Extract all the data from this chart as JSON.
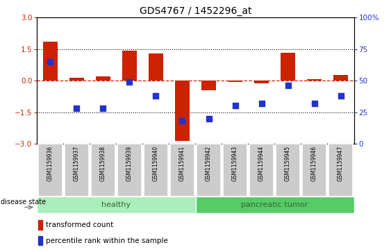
{
  "title": "GDS4767 / 1452296_at",
  "samples": [
    "GSM1159936",
    "GSM1159937",
    "GSM1159938",
    "GSM1159939",
    "GSM1159940",
    "GSM1159941",
    "GSM1159942",
    "GSM1159943",
    "GSM1159944",
    "GSM1159945",
    "GSM1159946",
    "GSM1159947"
  ],
  "transformed_count": [
    1.85,
    0.15,
    0.2,
    1.42,
    1.3,
    -2.88,
    -0.45,
    -0.05,
    -0.12,
    1.32,
    0.08,
    0.28
  ],
  "percentile_rank": [
    65,
    28,
    28,
    49,
    38,
    18,
    20,
    30,
    32,
    46,
    32,
    38
  ],
  "ylim": [
    -3,
    3
  ],
  "yticks_left": [
    -3,
    -1.5,
    0,
    1.5,
    3
  ],
  "yticks_right": [
    0,
    25,
    50,
    75,
    100
  ],
  "bar_color": "#cc2200",
  "dot_color": "#2233cc",
  "healthy_color": "#aaeebb",
  "tumor_color": "#55cc66",
  "label_color": "#336633",
  "bg_color": "#ffffff",
  "tick_area_color": "#cccccc",
  "healthy_indices": [
    0,
    1,
    2,
    3,
    4,
    5
  ],
  "tumor_indices": [
    6,
    7,
    8,
    9,
    10,
    11
  ],
  "disease_state_label": "disease state",
  "healthy_label": "healthy",
  "tumor_label": "pancreatic tumor",
  "legend_bar_label": "transformed count",
  "legend_dot_label": "percentile rank within the sample"
}
